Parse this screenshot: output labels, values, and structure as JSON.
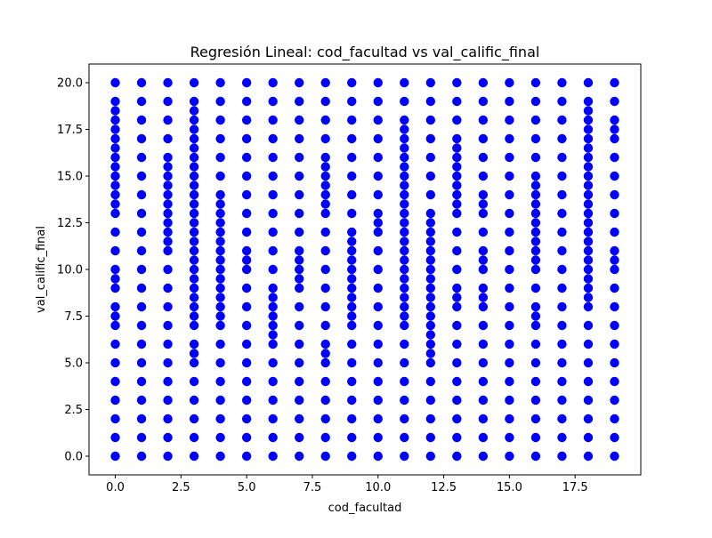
{
  "chart_data": {
    "type": "scatter",
    "title": "Regresión Lineal: cod_facultad vs val_calific_final",
    "xlabel": "cod_facultad",
    "ylabel": "val_calific_final",
    "xlim": [
      -1.0,
      20.0
    ],
    "ylim": [
      -1.0,
      21.0
    ],
    "grid": false,
    "legend": "none",
    "marker_color": "#0000ff",
    "x_ticks": [
      0.0,
      2.5,
      5.0,
      7.5,
      10.0,
      12.5,
      15.0,
      17.5
    ],
    "x_tick_labels": [
      "0.0",
      "2.5",
      "5.0",
      "7.5",
      "10.0",
      "12.5",
      "15.0",
      "17.5"
    ],
    "y_ticks": [
      0.0,
      2.5,
      5.0,
      7.5,
      10.0,
      12.5,
      15.0,
      17.5,
      20.0
    ],
    "y_tick_labels": [
      "0.0",
      "2.5",
      "5.0",
      "7.5",
      "10.0",
      "12.5",
      "15.0",
      "17.5",
      "20.0"
    ],
    "series": [
      {
        "marker": "circle",
        "points_by_x": [
          {
            "x": 0,
            "y": [
              0,
              1,
              2,
              3,
              4,
              5,
              6,
              7,
              7.5,
              8,
              9,
              9.5,
              10,
              11,
              12,
              13,
              13.5,
              14,
              14.5,
              15,
              15.5,
              16,
              16.5,
              17,
              17.5,
              18,
              18.5,
              19,
              20
            ]
          },
          {
            "x": 1,
            "y": [
              0,
              1,
              2,
              3,
              4,
              5,
              6,
              7,
              8,
              9,
              10,
              11,
              12,
              13,
              14,
              15,
              16,
              17,
              18,
              19,
              20
            ]
          },
          {
            "x": 2,
            "y": [
              0,
              1,
              2,
              3,
              4,
              5,
              6,
              7,
              8,
              9,
              10,
              11,
              11.5,
              12,
              12.5,
              13,
              13.5,
              14,
              14.5,
              15,
              15.5,
              16,
              17,
              18,
              19,
              20
            ]
          },
          {
            "x": 3,
            "y": [
              0,
              1,
              2,
              3,
              4,
              5,
              5.5,
              6,
              7,
              7.5,
              8,
              8.5,
              9,
              9.5,
              10,
              10.5,
              11,
              11.5,
              12,
              12.5,
              13,
              13.5,
              14,
              14.5,
              15,
              15.5,
              16,
              16.5,
              17,
              17.5,
              18,
              18.5,
              19,
              20
            ]
          },
          {
            "x": 4,
            "y": [
              0,
              1,
              2,
              3,
              4,
              5,
              6,
              7,
              7.5,
              8,
              8.5,
              9,
              9.5,
              10,
              10.5,
              11,
              11.5,
              12,
              12.5,
              13,
              13.5,
              14,
              15,
              16,
              17,
              18,
              19,
              20
            ]
          },
          {
            "x": 5,
            "y": [
              0,
              1,
              2,
              3,
              4,
              5,
              6,
              7,
              8,
              9,
              10,
              10.5,
              11,
              12,
              13,
              14,
              15,
              16,
              17,
              18,
              19,
              20
            ]
          },
          {
            "x": 6,
            "y": [
              0,
              1,
              2,
              3,
              4,
              5,
              6,
              6.5,
              7,
              7.5,
              8,
              8.5,
              9,
              10,
              11,
              12,
              13,
              14,
              15,
              16,
              17,
              18,
              19,
              20
            ]
          },
          {
            "x": 7,
            "y": [
              0,
              1,
              2,
              3,
              4,
              5,
              6,
              7,
              8,
              9,
              9.5,
              10,
              10.5,
              11,
              12,
              13,
              14,
              15,
              16,
              17,
              18,
              19,
              20
            ]
          },
          {
            "x": 8,
            "y": [
              0,
              1,
              2,
              3,
              4,
              5,
              5.5,
              6,
              7,
              8,
              9,
              10,
              11,
              12,
              13,
              13.5,
              14,
              14.5,
              15,
              15.5,
              16,
              17,
              18,
              19,
              20
            ]
          },
          {
            "x": 9,
            "y": [
              0,
              1,
              2,
              3,
              4,
              5,
              6,
              7,
              7.5,
              8,
              8.5,
              9,
              9.5,
              10,
              10.5,
              11,
              11.5,
              12,
              13,
              14,
              15,
              16,
              17,
              18,
              19,
              20
            ]
          },
          {
            "x": 10,
            "y": [
              0,
              1,
              2,
              3,
              4,
              5,
              6,
              7,
              8,
              9,
              10,
              11,
              12,
              12.5,
              13,
              14,
              15,
              16,
              17,
              18,
              19,
              20
            ]
          },
          {
            "x": 11,
            "y": [
              0,
              1,
              2,
              3,
              4,
              5,
              6,
              7,
              7.5,
              8,
              8.5,
              9,
              9.5,
              10,
              10.5,
              11,
              11.5,
              12,
              12.5,
              13,
              13.5,
              14,
              14.5,
              15,
              15.5,
              16,
              16.5,
              17,
              17.5,
              18,
              19,
              20
            ]
          },
          {
            "x": 12,
            "y": [
              0,
              1,
              2,
              3,
              4,
              5,
              5.5,
              6,
              6.5,
              7,
              7.5,
              8,
              8.5,
              9,
              9.5,
              10,
              10.5,
              11,
              11.5,
              12,
              12.5,
              13,
              14,
              15,
              16,
              17,
              18,
              19,
              20
            ]
          },
          {
            "x": 13,
            "y": [
              0,
              1,
              2,
              3,
              4,
              5,
              6,
              7,
              8,
              8.5,
              9,
              10,
              11,
              12,
              13,
              13.5,
              14,
              14.5,
              15,
              15.5,
              16,
              16.5,
              17,
              18,
              19,
              20
            ]
          },
          {
            "x": 14,
            "y": [
              0,
              1,
              2,
              3,
              4,
              5,
              6,
              7,
              8,
              8.5,
              9,
              10,
              10.5,
              11,
              12,
              13,
              13.5,
              14,
              15,
              16,
              17,
              18,
              19,
              20
            ]
          },
          {
            "x": 15,
            "y": [
              0,
              1,
              2,
              3,
              4,
              5,
              6,
              7,
              8,
              9,
              10,
              11,
              12,
              13,
              14,
              15,
              16,
              17,
              18,
              19,
              20
            ]
          },
          {
            "x": 16,
            "y": [
              0,
              1,
              2,
              3,
              4,
              5,
              6,
              7,
              7.5,
              8,
              9,
              10,
              10.5,
              11,
              11.5,
              12,
              12.5,
              13,
              13.5,
              14,
              14.5,
              15,
              16,
              17,
              18,
              19,
              20
            ]
          },
          {
            "x": 17,
            "y": [
              0,
              1,
              2,
              3,
              4,
              5,
              6,
              7,
              8,
              9,
              10,
              11,
              12,
              13,
              14,
              15,
              16,
              17,
              18,
              19,
              20
            ]
          },
          {
            "x": 18,
            "y": [
              0,
              1,
              2,
              3,
              4,
              5,
              6,
              7,
              8,
              8.5,
              9,
              9.5,
              10,
              10.5,
              11,
              11.5,
              12,
              12.5,
              13,
              13.5,
              14,
              14.5,
              15,
              15.5,
              16,
              16.5,
              17,
              17.5,
              18,
              18.5,
              19,
              20
            ]
          },
          {
            "x": 19,
            "y": [
              0,
              1,
              2,
              3,
              4,
              5,
              6,
              7,
              8,
              9,
              10,
              10.5,
              11,
              12,
              13,
              14,
              15,
              16,
              17,
              17.5,
              18,
              19,
              20
            ]
          }
        ]
      }
    ]
  }
}
